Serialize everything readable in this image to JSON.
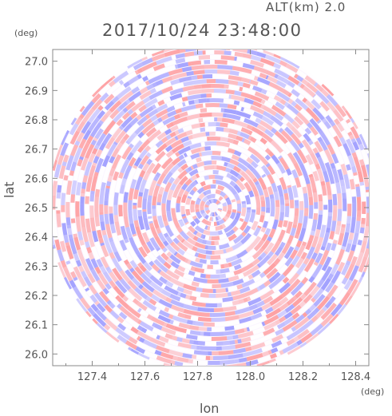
{
  "header": {
    "altitude": "ALT(km) 2.0",
    "timestamp": "2017/10/24 23:48:00"
  },
  "chart_data": {
    "type": "heatmap",
    "title": "2017/10/24 23:48:00",
    "subtitle": "ALT(km) 2.0",
    "xlabel": "lon",
    "ylabel": "lat",
    "x_unit": "(deg)",
    "y_unit": "(deg)",
    "xlim": [
      127.25,
      128.45
    ],
    "ylim": [
      25.96,
      27.04
    ],
    "x_ticks": [
      "127.4",
      "127.6",
      "127.8",
      "128.0",
      "128.2",
      "128.4"
    ],
    "y_ticks": [
      "27.0",
      "26.9",
      "26.8",
      "26.7",
      "26.6",
      "26.5",
      "26.4",
      "26.3",
      "26.2",
      "26.1",
      "26.0"
    ],
    "x_tick_values": [
      127.4,
      127.6,
      127.8,
      128.0,
      128.2,
      128.4
    ],
    "y_tick_values": [
      27.0,
      26.9,
      26.8,
      26.7,
      26.6,
      26.5,
      26.4,
      26.3,
      26.2,
      26.1,
      26.0
    ],
    "center": {
      "lon": 127.86,
      "lat": 26.5
    },
    "color_scale": {
      "positive": "#ff9a9a",
      "negative": "#9a9aff",
      "zero": "#ffffff"
    },
    "grid": false
  }
}
